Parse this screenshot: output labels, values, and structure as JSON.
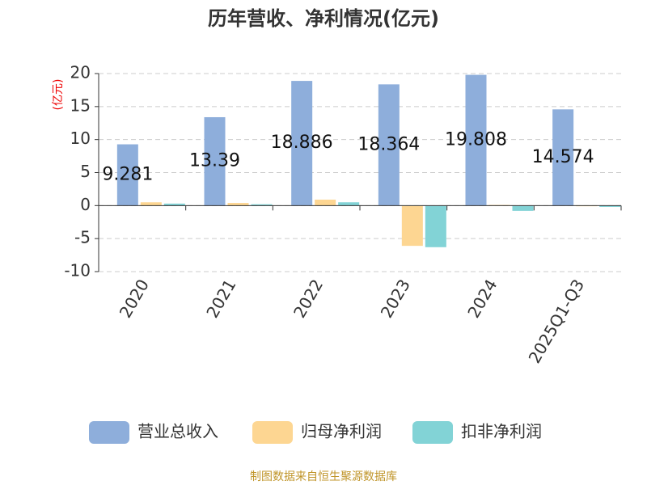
{
  "chart_data": {
    "type": "bar",
    "title": "历年营收、净利情况(亿元)",
    "y_label": "(亿元)",
    "categories": [
      "2020",
      "2021",
      "2022",
      "2023",
      "2024",
      "2025Q1-Q3"
    ],
    "series": [
      {
        "name": "营业总收入",
        "color": "#8eaedb",
        "values": [
          9.281,
          13.39,
          18.886,
          18.364,
          19.808,
          14.574
        ]
      },
      {
        "name": "归母净利润",
        "color": "#fdd692",
        "values": [
          0.5,
          0.4,
          0.9,
          -6.1,
          0.1,
          -0.1
        ]
      },
      {
        "name": "扣非净利润",
        "color": "#82d3d6",
        "values": [
          0.3,
          0.2,
          0.5,
          -6.3,
          -0.8,
          -0.2
        ]
      }
    ],
    "data_labels_series": 0,
    "ylim": [
      -10,
      20
    ],
    "yticks": [
      -10,
      -5,
      0,
      5,
      10,
      15,
      20
    ],
    "grid": true,
    "legend": "bottom",
    "source": "制图数据来自恒生聚源数据库"
  }
}
